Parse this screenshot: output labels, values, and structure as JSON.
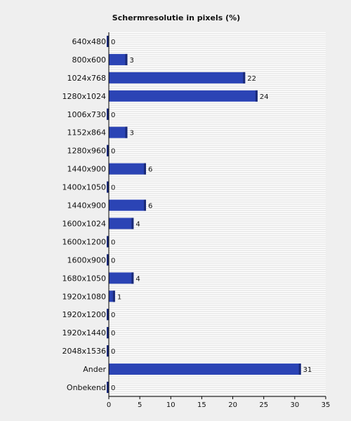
{
  "chart_data": {
    "type": "bar",
    "orientation": "horizontal",
    "title": "Schermresolutie in pixels (%)",
    "xlabel": "",
    "ylabel": "",
    "xlim": [
      0,
      35
    ],
    "x_ticks": [
      0,
      5,
      10,
      15,
      20,
      25,
      30,
      35
    ],
    "grid": true,
    "legend": "none",
    "bar_color": "#2b44b5",
    "categories": [
      "640x480",
      "800x600",
      "1024x768",
      "1280x1024",
      "1006x730",
      "1152x864",
      "1280x960",
      "1440x900",
      "1400x1050",
      "1440x900",
      "1600x1024",
      "1600x1200",
      "1600x900",
      "1680x1050",
      "1920x1080",
      "1920x1200",
      "1920x1440",
      "2048x1536",
      "Ander",
      "Onbekend"
    ],
    "values": [
      0,
      3,
      22,
      24,
      0,
      3,
      0,
      6,
      0,
      6,
      4,
      0,
      0,
      4,
      1,
      0,
      0,
      0,
      31,
      0
    ],
    "data_labels": [
      "0",
      "3",
      "22",
      "24",
      "0",
      "3",
      "0",
      "6",
      "0",
      "6",
      "4",
      "0",
      "0",
      "4",
      "1",
      "0",
      "0",
      "0",
      "31",
      "0"
    ]
  }
}
